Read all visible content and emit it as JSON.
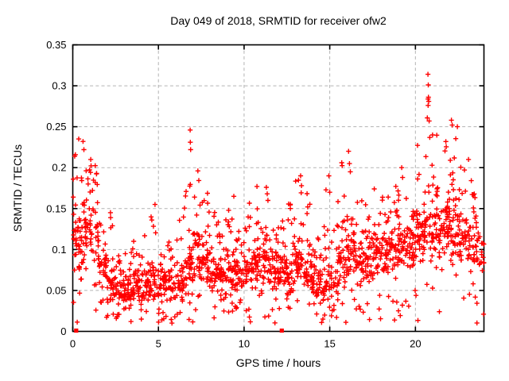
{
  "figure": {
    "background": "#ffffff"
  },
  "chart_data": {
    "type": "scatter",
    "title": "Day 049 of 2018, SRMTID for receiver ofw2",
    "xlabel": "GPS time / hours",
    "ylabel": "SRMTID / TECUs",
    "xlim": [
      0,
      24
    ],
    "ylim": [
      0,
      0.35
    ],
    "xtick_values": [
      0,
      5,
      10,
      15,
      20
    ],
    "xtick_labels": [
      "0",
      "5",
      "10",
      "15",
      "20"
    ],
    "ytick_values": [
      0,
      0.05,
      0.1,
      0.15,
      0.2,
      0.25,
      0.3,
      0.35
    ],
    "ytick_labels": [
      "0",
      "0.05",
      "0.1",
      "0.15",
      "0.2",
      "0.25",
      "0.3",
      "0.35"
    ],
    "grid": {
      "visible": true,
      "color": "#b3b3b3",
      "style": "dashed"
    },
    "border_color": "#000000",
    "legend": "none",
    "marker": {
      "shape": "plus",
      "color": "#ff0000",
      "size": 7
    },
    "series": [
      {
        "name": "SRMTID",
        "seed": 2018049,
        "zero_points": [
          [
            0.2,
            0
          ],
          [
            12.2,
            0
          ]
        ],
        "edge_points": [
          [
            0.03,
            0.186
          ],
          [
            0.03,
            0.164
          ]
        ],
        "peak_points": [
          [
            0.35,
            0.235
          ],
          [
            0.6,
            0.232
          ],
          [
            0.65,
            0.222
          ],
          [
            1.05,
            0.21
          ],
          [
            2.2,
            0.145
          ],
          [
            4.8,
            0.155
          ],
          [
            6.85,
            0.246
          ],
          [
            6.86,
            0.231
          ],
          [
            6.88,
            0.222
          ],
          [
            7.3,
            0.196
          ],
          [
            9.4,
            0.165
          ],
          [
            10.75,
            0.177
          ],
          [
            11.3,
            0.176
          ],
          [
            11.35,
            0.168
          ],
          [
            13.3,
            0.19
          ],
          [
            13.35,
            0.178
          ],
          [
            14.95,
            0.19
          ],
          [
            15.0,
            0.17
          ],
          [
            15.7,
            0.206
          ],
          [
            16.1,
            0.22
          ],
          [
            16.15,
            0.205
          ],
          [
            16.2,
            0.195
          ],
          [
            19.2,
            0.2
          ],
          [
            19.25,
            0.188
          ],
          [
            20.73,
            0.314
          ],
          [
            20.75,
            0.301
          ],
          [
            20.76,
            0.286
          ],
          [
            20.78,
            0.281
          ],
          [
            20.74,
            0.276
          ],
          [
            20.8,
            0.257
          ],
          [
            21.0,
            0.24
          ],
          [
            22.1,
            0.258
          ],
          [
            22.15,
            0.252
          ],
          [
            22.45,
            0.25
          ],
          [
            23.1,
            0.21
          ]
        ],
        "low_points": [
          [
            1.35,
            0.026
          ],
          [
            2.6,
            0.018
          ],
          [
            3.4,
            0.012
          ],
          [
            4.0,
            0.015
          ],
          [
            5.2,
            0.014
          ],
          [
            6.1,
            0.021
          ],
          [
            8.3,
            0.03
          ],
          [
            14.6,
            0.015
          ],
          [
            14.7,
            0.02
          ],
          [
            15.1,
            0.019
          ],
          [
            21.4,
            0.024
          ]
        ],
        "density_bins": [
          [
            0.0,
            0.05,
            0.18,
            0.235,
            40
          ],
          [
            0.5,
            0.06,
            0.18,
            0.225,
            40
          ],
          [
            1.0,
            0.07,
            0.17,
            0.215,
            40
          ],
          [
            1.5,
            0.04,
            0.12,
            0.155,
            36
          ],
          [
            2.0,
            0.03,
            0.085,
            0.145,
            36
          ],
          [
            2.5,
            0.022,
            0.07,
            0.1,
            36
          ],
          [
            3.0,
            0.02,
            0.075,
            0.11,
            36
          ],
          [
            3.5,
            0.028,
            0.08,
            0.12,
            36
          ],
          [
            4.0,
            0.03,
            0.085,
            0.125,
            36
          ],
          [
            4.5,
            0.035,
            0.09,
            0.155,
            36
          ],
          [
            5.0,
            0.028,
            0.09,
            0.13,
            36
          ],
          [
            5.5,
            0.03,
            0.08,
            0.11,
            36
          ],
          [
            6.0,
            0.03,
            0.09,
            0.14,
            36
          ],
          [
            6.5,
            0.04,
            0.12,
            0.24,
            38
          ],
          [
            7.0,
            0.05,
            0.13,
            0.2,
            38
          ],
          [
            7.5,
            0.05,
            0.12,
            0.185,
            38
          ],
          [
            8.0,
            0.04,
            0.1,
            0.16,
            38
          ],
          [
            8.5,
            0.04,
            0.1,
            0.145,
            38
          ],
          [
            9.0,
            0.04,
            0.1,
            0.165,
            38
          ],
          [
            9.5,
            0.04,
            0.1,
            0.13,
            38
          ],
          [
            10.0,
            0.045,
            0.105,
            0.16,
            38
          ],
          [
            10.5,
            0.045,
            0.11,
            0.155,
            38
          ],
          [
            11.0,
            0.05,
            0.11,
            0.175,
            38
          ],
          [
            11.5,
            0.045,
            0.105,
            0.15,
            38
          ],
          [
            12.0,
            0.04,
            0.1,
            0.14,
            38
          ],
          [
            12.5,
            0.04,
            0.1,
            0.16,
            38
          ],
          [
            13.0,
            0.05,
            0.11,
            0.185,
            38
          ],
          [
            13.5,
            0.04,
            0.1,
            0.17,
            38
          ],
          [
            14.0,
            0.03,
            0.09,
            0.15,
            38
          ],
          [
            14.5,
            0.02,
            0.08,
            0.185,
            34
          ],
          [
            15.0,
            0.03,
            0.09,
            0.17,
            30
          ],
          [
            15.5,
            0.05,
            0.12,
            0.205,
            36
          ],
          [
            16.0,
            0.06,
            0.13,
            0.215,
            38
          ],
          [
            16.5,
            0.05,
            0.12,
            0.16,
            38
          ],
          [
            17.0,
            0.05,
            0.13,
            0.17,
            38
          ],
          [
            17.5,
            0.06,
            0.13,
            0.18,
            38
          ],
          [
            18.0,
            0.06,
            0.13,
            0.17,
            38
          ],
          [
            18.5,
            0.06,
            0.14,
            0.19,
            38
          ],
          [
            19.0,
            0.07,
            0.14,
            0.2,
            38
          ],
          [
            19.5,
            0.07,
            0.14,
            0.18,
            38
          ],
          [
            20.0,
            0.08,
            0.16,
            0.23,
            38
          ],
          [
            20.5,
            0.08,
            0.17,
            0.3,
            40
          ],
          [
            21.0,
            0.08,
            0.17,
            0.24,
            40
          ],
          [
            21.5,
            0.09,
            0.17,
            0.255,
            40
          ],
          [
            22.0,
            0.08,
            0.16,
            0.245,
            40
          ],
          [
            22.5,
            0.07,
            0.16,
            0.21,
            38
          ],
          [
            23.0,
            0.06,
            0.15,
            0.19,
            38
          ],
          [
            23.5,
            0.06,
            0.14,
            0.185,
            28
          ]
        ]
      }
    ]
  }
}
